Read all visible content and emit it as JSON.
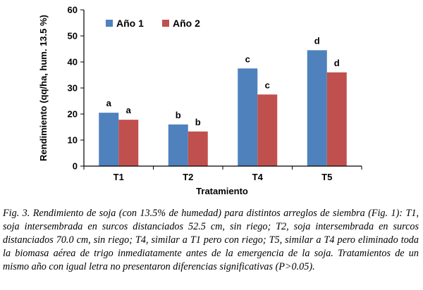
{
  "chart_data": {
    "type": "bar",
    "xlabel": "Tratamiento",
    "ylabel": "Rendimiento (qq/ha, hum. 13.5 %)",
    "ylim": [
      0,
      60
    ],
    "yticks": [
      "0",
      "10",
      "20",
      "30",
      "40",
      "50",
      "60"
    ],
    "categories": [
      "T1",
      "T2",
      "T4",
      "T5"
    ],
    "series": [
      {
        "name": "Año 1",
        "color": "#4F81BD",
        "values": [
          20.5,
          16.0,
          37.5,
          44.5
        ],
        "labels": [
          "a",
          "b",
          "c",
          "d"
        ]
      },
      {
        "name": "Año 2",
        "color": "#C0504D",
        "values": [
          17.8,
          13.3,
          27.5,
          36.0
        ],
        "labels": [
          "a",
          "b",
          "c",
          "d"
        ]
      }
    ],
    "grid": false,
    "legend": "top-left"
  },
  "caption": "Fig. 3. Rendimiento de soja (con 13.5% de humedad) para distintos arreglos de siembra (Fig. 1): T1, soja intersembrada en surcos distanciados 52.5 cm, sin riego; T2, soja intersembrada en surcos distanciados 70.0 cm, sin riego; T4, similar a T1 pero con riego; T5, similar a T4 pero eliminado toda la biomasa aérea de trigo inmediatamente antes de la emergencia de la soja. Tratamientos de un mismo año con igual letra no presentaron diferencias significativas (P>0.05)."
}
